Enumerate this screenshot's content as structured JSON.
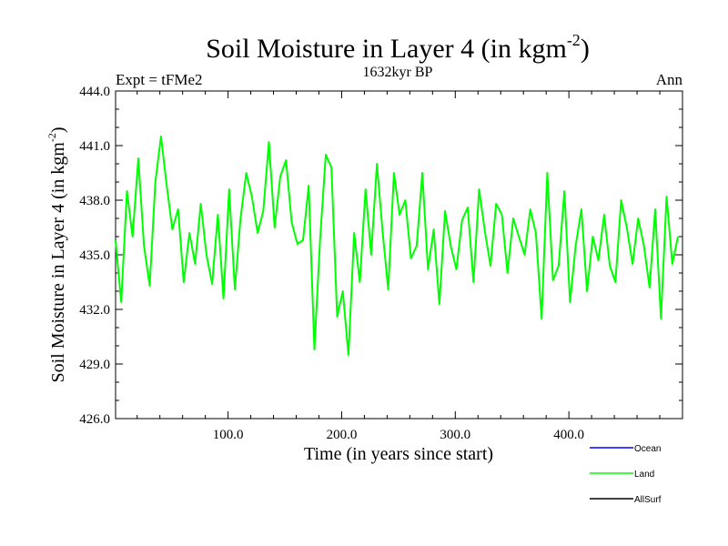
{
  "chart_data": {
    "type": "line",
    "title": "Soil Moisture in Layer 4 (in kgm",
    "title_sup": "-2",
    "title_end": ")",
    "subtitle": "1632kyr BP",
    "left_label": "Expt = tFMe2",
    "right_label": "Ann",
    "xlabel": "Time (in years since start)",
    "ylabel": "Soil Moisture in Layer 4 (in kgm",
    "ylabel_sup": "-2",
    "ylabel_end": ")",
    "xlim": [
      1,
      500
    ],
    "ylim": [
      426.0,
      444.0
    ],
    "x_ticks": [
      100,
      200,
      300,
      400
    ],
    "x_tick_labels": [
      "100.0",
      "200.0",
      "300.0",
      "400.0"
    ],
    "y_ticks": [
      426,
      429,
      432,
      435,
      438,
      441,
      444
    ],
    "y_tick_labels": [
      "426.0",
      "429.0",
      "432.0",
      "435.0",
      "438.0",
      "441.0",
      "444.0"
    ],
    "legend": [
      {
        "name": "Ocean",
        "color": "#0000ff"
      },
      {
        "name": "Land",
        "color": "#00ff00"
      },
      {
        "name": "AllSurf",
        "color": "#000000"
      }
    ],
    "series": [
      {
        "name": "Land",
        "color": "#00ff00",
        "x_start": 1,
        "x_step": 5,
        "values": [
          435.8,
          432.4,
          438.5,
          436.0,
          440.3,
          435.5,
          433.3,
          439.0,
          441.5,
          438.8,
          436.4,
          437.5,
          433.5,
          436.2,
          434.5,
          437.8,
          435.0,
          433.4,
          437.2,
          432.6,
          438.6,
          433.1,
          437.0,
          439.5,
          438.2,
          436.2,
          437.4,
          441.2,
          436.5,
          439.3,
          440.2,
          436.8,
          435.6,
          435.8,
          438.8,
          429.8,
          435.8,
          440.5,
          439.8,
          431.6,
          433.0,
          429.5,
          436.2,
          433.5,
          438.6,
          435.0,
          440.0,
          436.3,
          433.1,
          439.5,
          437.2,
          438.0,
          434.8,
          435.5,
          439.5,
          434.2,
          436.4,
          432.3,
          437.4,
          435.5,
          434.2,
          436.9,
          437.6,
          433.5,
          438.6,
          436.3,
          434.4,
          437.8,
          437.2,
          434.0,
          437.0,
          436.0,
          435.0,
          437.5,
          436.2,
          431.5,
          439.5,
          433.6,
          434.4,
          438.5,
          432.4,
          435.5,
          437.5,
          433.0,
          436.0,
          434.7,
          437.2,
          434.4,
          433.5,
          438.0,
          436.5,
          434.5,
          437.0,
          435.5,
          433.2,
          437.5,
          431.5,
          438.2,
          434.5,
          436.0
        ]
      },
      {
        "name": "Ocean",
        "color": "#0000ff",
        "values": []
      },
      {
        "name": "AllSurf",
        "color": "#000000",
        "values": []
      }
    ]
  }
}
